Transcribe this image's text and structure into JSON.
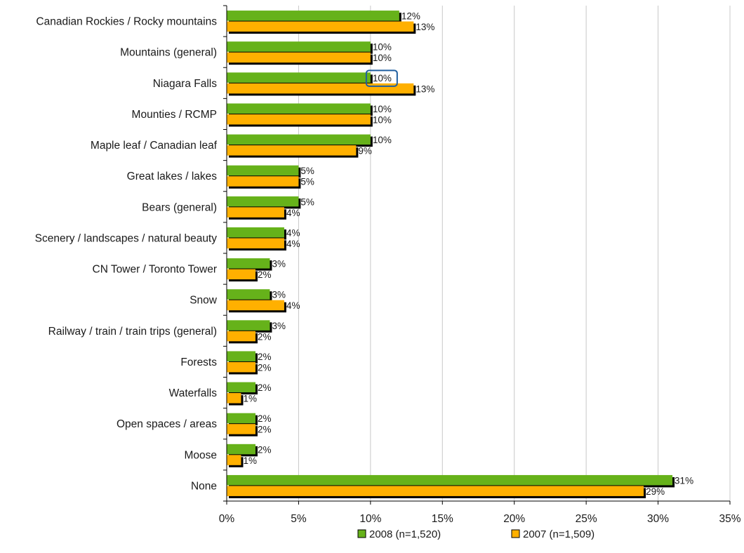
{
  "chart_data": {
    "type": "bar",
    "orientation": "horizontal",
    "categories": [
      "Canadian Rockies / Rocky mountains",
      "Mountains (general)",
      "Niagara Falls",
      "Mounties / RCMP",
      "Maple leaf / Canadian leaf",
      "Great lakes / lakes",
      "Bears (general)",
      "Scenery / landscapes / natural beauty",
      "CN Tower / Toronto Tower",
      "Snow",
      "Railway / train / train trips (general)",
      "Forests",
      "Waterfalls",
      "Open spaces / areas",
      "Moose",
      "None"
    ],
    "series": [
      {
        "name": "2008 (n=1,520)",
        "color": "#66b21a",
        "values": [
          12,
          10,
          10,
          10,
          10,
          5,
          5,
          4,
          3,
          3,
          3,
          2,
          2,
          2,
          2,
          31
        ],
        "labels": [
          "12%",
          "10%",
          "10%",
          "10%",
          "10%",
          "5%",
          "5%",
          "4%",
          "3%",
          "3%",
          "3%",
          "2%",
          "2%",
          "2%",
          "2%",
          "31%"
        ]
      },
      {
        "name": "2007 (n=1,509)",
        "color": "#ffb000",
        "values": [
          13,
          10,
          13,
          10,
          9,
          5,
          4,
          4,
          2,
          4,
          2,
          2,
          1,
          2,
          1,
          29
        ],
        "labels": [
          "13%",
          "10%",
          "13%",
          "10%",
          "9%",
          "5%",
          "4%",
          "4%",
          "2%",
          "4%",
          "2%",
          "2%",
          "1%",
          "2%",
          "1%",
          "29%"
        ]
      }
    ],
    "xlim": [
      0,
      35
    ],
    "xticks": [
      0,
      5,
      10,
      15,
      20,
      25,
      30,
      35
    ],
    "xtick_labels": [
      "0%",
      "5%",
      "10%",
      "15%",
      "20%",
      "25%",
      "30%",
      "35%"
    ],
    "grid": true,
    "legend_position": "bottom",
    "highlight": {
      "category_index": 2,
      "series_index": 0,
      "color": "#1f5fa0"
    }
  }
}
